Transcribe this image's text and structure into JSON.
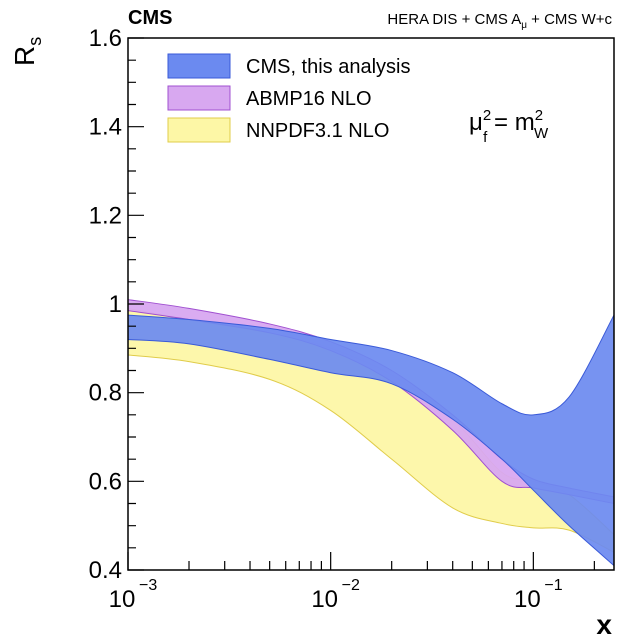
{
  "chart_data": {
    "type": "area",
    "header": {
      "experiment": "CMS",
      "datasets": "HERA DIS + CMS A",
      "datasets_sub": "μ",
      "datasets_tail": " + CMS W+c"
    },
    "xlabel": "x",
    "ylabel": "R",
    "ylabel_sub": "s",
    "xscale": "log",
    "xlim": [
      0.001,
      0.25
    ],
    "ylim": [
      0.4,
      1.6
    ],
    "yticks": [
      "0.4",
      "0.6",
      "0.8",
      "1",
      "1.2",
      "1.4",
      "1.6"
    ],
    "ytick_values": [
      0.4,
      0.6,
      0.8,
      1.0,
      1.2,
      1.4,
      1.6
    ],
    "xticks": [
      {
        "value": 0.001,
        "base": "10",
        "exp": "−3"
      },
      {
        "value": 0.01,
        "base": "10",
        "exp": "−2"
      },
      {
        "value": 0.1,
        "base": "10",
        "exp": "−1"
      }
    ],
    "annotation": {
      "mu": "μ",
      "mu_sup": "2",
      "mu_sub": "f",
      "eq": " = m",
      "m_sup": "2",
      "m_sub": "W"
    },
    "legend_position": "top-left",
    "series": [
      {
        "name": "NNPDF3.1 NLO",
        "fill": "#fdf7a6",
        "stroke": "#e0cc4a",
        "x": [
          0.001,
          0.002,
          0.005,
          0.01,
          0.02,
          0.04,
          0.07,
          0.1,
          0.15,
          0.25
        ],
        "upper": [
          0.99,
          0.965,
          0.935,
          0.9,
          0.84,
          0.74,
          0.62,
          0.6,
          0.57,
          0.48
        ],
        "lower": [
          0.885,
          0.87,
          0.83,
          0.76,
          0.65,
          0.54,
          0.505,
          0.495,
          0.49,
          0.44
        ]
      },
      {
        "name": "ABMP16 NLO",
        "fill": "#d8a8f0",
        "stroke": "#a050d0",
        "x": [
          0.001,
          0.002,
          0.005,
          0.01,
          0.02,
          0.04,
          0.07,
          0.1,
          0.15,
          0.25
        ],
        "upper": [
          1.01,
          0.99,
          0.955,
          0.915,
          0.85,
          0.75,
          0.65,
          0.605,
          0.585,
          0.565
        ],
        "lower": [
          0.985,
          0.965,
          0.935,
          0.895,
          0.825,
          0.715,
          0.6,
          0.585,
          0.57,
          0.55
        ]
      },
      {
        "name": "CMS, this analysis",
        "fill": "#6b8af0",
        "stroke": "#3a5ad8",
        "x": [
          0.001,
          0.002,
          0.005,
          0.01,
          0.02,
          0.04,
          0.07,
          0.1,
          0.15,
          0.25
        ],
        "upper": [
          0.975,
          0.965,
          0.945,
          0.92,
          0.895,
          0.845,
          0.775,
          0.75,
          0.79,
          0.975
        ],
        "lower": [
          0.92,
          0.91,
          0.875,
          0.845,
          0.82,
          0.74,
          0.65,
          0.58,
          0.5,
          0.41
        ]
      }
    ]
  }
}
